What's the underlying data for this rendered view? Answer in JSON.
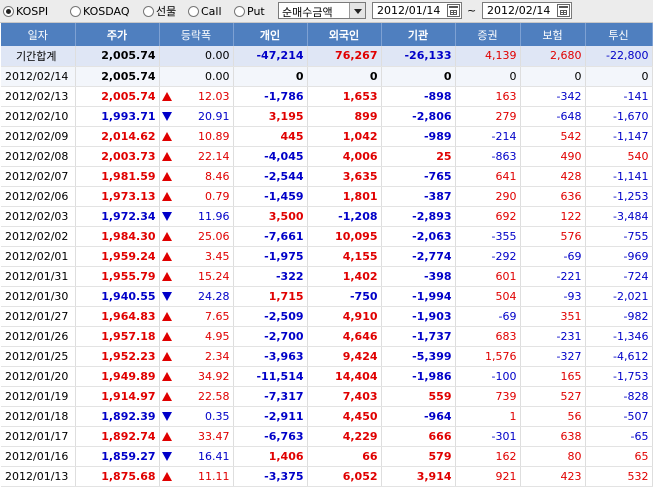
{
  "toolbar": {
    "radios": [
      {
        "label": "KOSPI",
        "checked": true
      },
      {
        "label": "KOSDAQ",
        "checked": false
      },
      {
        "label": "선물",
        "checked": false
      },
      {
        "label": "Call",
        "checked": false
      },
      {
        "label": "Put",
        "checked": false
      }
    ],
    "metric_select": "순매수금액",
    "date_from": "2012/01/14",
    "tilde": "~",
    "date_to": "2012/02/14"
  },
  "columns": [
    "일자",
    "주가",
    "등락폭",
    "개인",
    "외국인",
    "기관",
    "증권",
    "보험",
    "투신"
  ],
  "summary": {
    "date": "기간합계",
    "price": "2,005.74",
    "change": "0.00",
    "individual": "-47,214",
    "foreign": "76,267",
    "institution": "-26,133",
    "securities": "4,139",
    "insurance": "2,680",
    "trust": "-22,800"
  },
  "rows": [
    {
      "date": "2012/02/14",
      "price": "2,005.74",
      "dir": "none",
      "change": "0.00",
      "individual": "0",
      "foreign": "0",
      "institution": "0",
      "securities": "0",
      "insurance": "0",
      "trust": "0"
    },
    {
      "date": "2012/02/13",
      "price": "2,005.74",
      "dir": "up",
      "change": "12.03",
      "individual": "-1,786",
      "foreign": "1,653",
      "institution": "-898",
      "securities": "163",
      "insurance": "-342",
      "trust": "-141"
    },
    {
      "date": "2012/02/10",
      "price": "1,993.71",
      "dir": "down",
      "change": "20.91",
      "individual": "3,195",
      "foreign": "899",
      "institution": "-2,806",
      "securities": "279",
      "insurance": "-648",
      "trust": "-1,670"
    },
    {
      "date": "2012/02/09",
      "price": "2,014.62",
      "dir": "up",
      "change": "10.89",
      "individual": "445",
      "foreign": "1,042",
      "institution": "-989",
      "securities": "-214",
      "insurance": "542",
      "trust": "-1,147"
    },
    {
      "date": "2012/02/08",
      "price": "2,003.73",
      "dir": "up",
      "change": "22.14",
      "individual": "-4,045",
      "foreign": "4,006",
      "institution": "25",
      "securities": "-863",
      "insurance": "490",
      "trust": "540"
    },
    {
      "date": "2012/02/07",
      "price": "1,981.59",
      "dir": "up",
      "change": "8.46",
      "individual": "-2,544",
      "foreign": "3,635",
      "institution": "-765",
      "securities": "641",
      "insurance": "428",
      "trust": "-1,141"
    },
    {
      "date": "2012/02/06",
      "price": "1,973.13",
      "dir": "up",
      "change": "0.79",
      "individual": "-1,459",
      "foreign": "1,801",
      "institution": "-387",
      "securities": "290",
      "insurance": "636",
      "trust": "-1,253"
    },
    {
      "date": "2012/02/03",
      "price": "1,972.34",
      "dir": "down",
      "change": "11.96",
      "individual": "3,500",
      "foreign": "-1,208",
      "institution": "-2,893",
      "securities": "692",
      "insurance": "122",
      "trust": "-3,484"
    },
    {
      "date": "2012/02/02",
      "price": "1,984.30",
      "dir": "up",
      "change": "25.06",
      "individual": "-7,661",
      "foreign": "10,095",
      "institution": "-2,063",
      "securities": "-355",
      "insurance": "576",
      "trust": "-755"
    },
    {
      "date": "2012/02/01",
      "price": "1,959.24",
      "dir": "up",
      "change": "3.45",
      "individual": "-1,975",
      "foreign": "4,155",
      "institution": "-2,774",
      "securities": "-292",
      "insurance": "-69",
      "trust": "-969"
    },
    {
      "date": "2012/01/31",
      "price": "1,955.79",
      "dir": "up",
      "change": "15.24",
      "individual": "-322",
      "foreign": "1,402",
      "institution": "-398",
      "securities": "601",
      "insurance": "-221",
      "trust": "-724"
    },
    {
      "date": "2012/01/30",
      "price": "1,940.55",
      "dir": "down",
      "change": "24.28",
      "individual": "1,715",
      "foreign": "-750",
      "institution": "-1,994",
      "securities": "504",
      "insurance": "-93",
      "trust": "-2,021"
    },
    {
      "date": "2012/01/27",
      "price": "1,964.83",
      "dir": "up",
      "change": "7.65",
      "individual": "-2,509",
      "foreign": "4,910",
      "institution": "-1,903",
      "securities": "-69",
      "insurance": "351",
      "trust": "-982"
    },
    {
      "date": "2012/01/26",
      "price": "1,957.18",
      "dir": "up",
      "change": "4.95",
      "individual": "-2,700",
      "foreign": "4,646",
      "institution": "-1,737",
      "securities": "683",
      "insurance": "-231",
      "trust": "-1,346"
    },
    {
      "date": "2012/01/25",
      "price": "1,952.23",
      "dir": "up",
      "change": "2.34",
      "individual": "-3,963",
      "foreign": "9,424",
      "institution": "-5,399",
      "securities": "1,576",
      "insurance": "-327",
      "trust": "-4,612"
    },
    {
      "date": "2012/01/20",
      "price": "1,949.89",
      "dir": "up",
      "change": "34.92",
      "individual": "-11,514",
      "foreign": "14,404",
      "institution": "-1,986",
      "securities": "-100",
      "insurance": "165",
      "trust": "-1,753"
    },
    {
      "date": "2012/01/19",
      "price": "1,914.97",
      "dir": "up",
      "change": "22.58",
      "individual": "-7,317",
      "foreign": "7,403",
      "institution": "559",
      "securities": "739",
      "insurance": "527",
      "trust": "-828"
    },
    {
      "date": "2012/01/18",
      "price": "1,892.39",
      "dir": "down",
      "change": "0.35",
      "individual": "-2,911",
      "foreign": "4,450",
      "institution": "-964",
      "securities": "1",
      "insurance": "56",
      "trust": "-507"
    },
    {
      "date": "2012/01/17",
      "price": "1,892.74",
      "dir": "up",
      "change": "33.47",
      "individual": "-6,763",
      "foreign": "4,229",
      "institution": "666",
      "securities": "-301",
      "insurance": "638",
      "trust": "-65"
    },
    {
      "date": "2012/01/16",
      "price": "1,859.27",
      "dir": "down",
      "change": "16.41",
      "individual": "1,406",
      "foreign": "66",
      "institution": "579",
      "securities": "162",
      "insurance": "80",
      "trust": "65"
    },
    {
      "date": "2012/01/13",
      "price": "1,875.68",
      "dir": "up",
      "change": "11.11",
      "individual": "-3,375",
      "foreign": "6,052",
      "institution": "3,914",
      "securities": "921",
      "insurance": "423",
      "trust": "532"
    }
  ],
  "colors": {
    "header_bg": "#4f7fbf",
    "positive": "#e00000",
    "negative": "#0000c8",
    "summary_bg": "#dfe6f5"
  }
}
